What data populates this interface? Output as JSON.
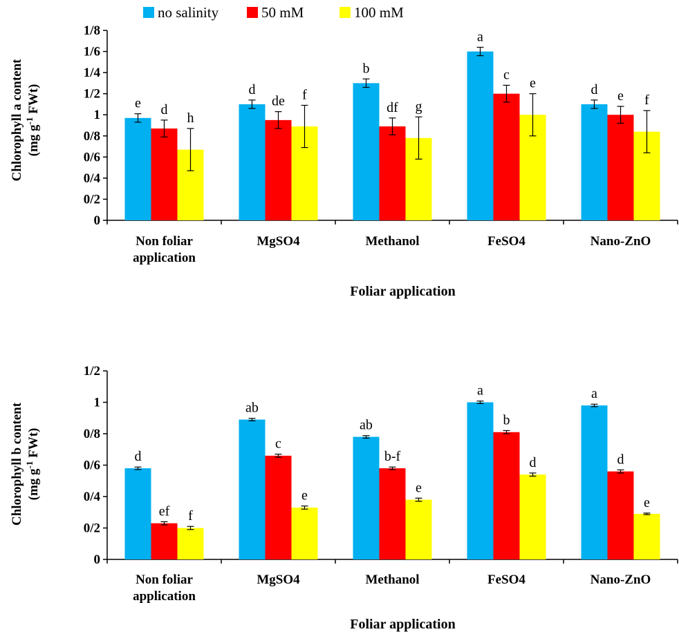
{
  "chart_data": [
    {
      "type": "bar",
      "title": "",
      "xlabel": "Foliar application",
      "ylabel": "Chlorophyll  a content",
      "ylabel_unit": [
        "(mg g",
        "-1",
        " FWt)"
      ],
      "ylim": [
        0,
        1.8
      ],
      "yticks": [
        0,
        0.2,
        0.4,
        0.6,
        0.8,
        1.0,
        1.2,
        1.4,
        1.6,
        1.8
      ],
      "ytick_labels": [
        "0",
        "0/2",
        "0/4",
        "0/6",
        "0/8",
        "1",
        "1/2",
        "1/4",
        "1/6",
        "1/8"
      ],
      "categories": [
        [
          "Non foliar",
          "application"
        ],
        [
          "MgSO4"
        ],
        [
          "Methanol"
        ],
        [
          "FeSO4"
        ],
        [
          "Nano-ZnO"
        ]
      ],
      "series": [
        {
          "name": "no salinity",
          "color": "#00B0F0",
          "values": [
            0.97,
            1.1,
            1.3,
            1.6,
            1.1
          ],
          "errors": [
            0.04,
            0.04,
            0.04,
            0.04,
            0.04
          ],
          "letters": [
            "e",
            "d",
            "b",
            "a",
            "d"
          ]
        },
        {
          "name": "50 mM",
          "color": "#FF0000",
          "values": [
            0.87,
            0.95,
            0.89,
            1.2,
            1.0
          ],
          "errors": [
            0.08,
            0.08,
            0.08,
            0.08,
            0.08
          ],
          "letters": [
            "d",
            "de",
            "df",
            "c",
            "e"
          ]
        },
        {
          "name": "100 mM",
          "color": "#FFFF00",
          "values": [
            0.67,
            0.89,
            0.78,
            1.0,
            0.84
          ],
          "errors": [
            0.2,
            0.2,
            0.2,
            0.2,
            0.2
          ],
          "letters": [
            "h",
            "f",
            "g",
            "e",
            "f"
          ]
        }
      ],
      "legend_position": "top"
    },
    {
      "type": "bar",
      "title": "",
      "xlabel": "Foliar application",
      "ylabel": "Chlorophyll  b content",
      "ylabel_unit": [
        "(mg g",
        "-1",
        " FWt)"
      ],
      "ylim": [
        0,
        1.2
      ],
      "yticks": [
        0,
        0.2,
        0.4,
        0.6,
        0.8,
        1.0,
        1.2
      ],
      "ytick_labels": [
        "0",
        "0/2",
        "0/4",
        "0/6",
        "0/8",
        "1",
        "1/2"
      ],
      "categories": [
        [
          "Non foliar",
          "application"
        ],
        [
          "MgSO4"
        ],
        [
          "Methanol"
        ],
        [
          "FeSO4"
        ],
        [
          "Nano-ZnO"
        ]
      ],
      "series": [
        {
          "name": "no salinity",
          "color": "#00B0F0",
          "values": [
            0.58,
            0.89,
            0.78,
            1.0,
            0.98
          ],
          "errors": [
            0.008,
            0.008,
            0.008,
            0.008,
            0.008
          ],
          "letters": [
            "d",
            "ab",
            "ab",
            "a",
            "a"
          ]
        },
        {
          "name": "50 mM",
          "color": "#FF0000",
          "values": [
            0.23,
            0.66,
            0.58,
            0.81,
            0.56
          ],
          "errors": [
            0.01,
            0.01,
            0.008,
            0.01,
            0.01
          ],
          "letters": [
            "ef",
            "c",
            "b-f",
            "b",
            "d"
          ]
        },
        {
          "name": "100 mM",
          "color": "#FFFF00",
          "values": [
            0.2,
            0.33,
            0.38,
            0.54,
            0.29
          ],
          "errors": [
            0.01,
            0.01,
            0.01,
            0.01,
            0.005
          ],
          "letters": [
            "f",
            "e",
            "e",
            "d",
            "e"
          ]
        }
      ]
    }
  ]
}
